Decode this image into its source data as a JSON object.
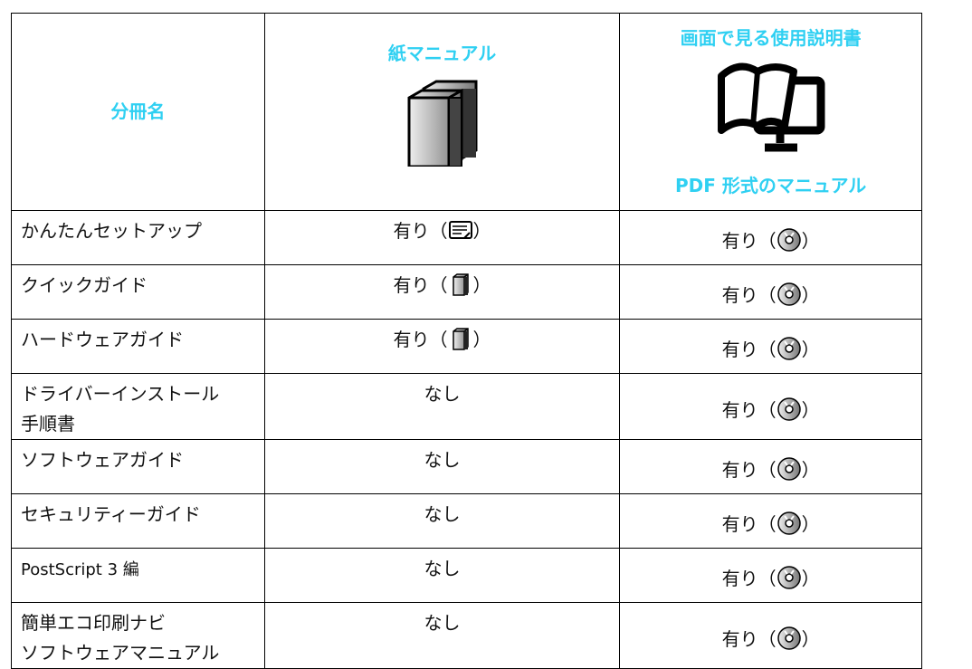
{
  "header": {
    "name": "分冊名",
    "paper": "紙マニュアル",
    "screen": "画面で見る使用説明書",
    "screen_format": "PDF 形式のマニュアル"
  },
  "rows": [
    {
      "name": [
        "かんたんセットアップ"
      ],
      "paper": [
        "有り（",
        "）"
      ],
      "screen": [
        "有り（",
        "）"
      ]
    },
    {
      "name": [
        "クイックガイド"
      ],
      "paper": [
        "有り（",
        "）"
      ],
      "screen": [
        "有り（",
        "）"
      ]
    },
    {
      "name": [
        "ハードウェアガイド"
      ],
      "paper": [
        "有り（",
        "）"
      ],
      "screen": [
        "有り（",
        "）"
      ]
    },
    {
      "name": [
        "ドライバーインストール",
        "手順書"
      ],
      "paper": [
        "なし"
      ],
      "screen": [
        "有り（",
        "）"
      ]
    },
    {
      "name": [
        "ソフトウェアガイド"
      ],
      "paper": [
        "なし"
      ],
      "screen": [
        "有り（",
        "）"
      ]
    },
    {
      "name": [
        "セキュリティーガイド"
      ],
      "paper": [
        "なし"
      ],
      "screen": [
        "有り（",
        "）"
      ]
    },
    {
      "name": [
        "PostScript 3 編"
      ],
      "paper": [
        "なし"
      ],
      "screen": [
        "有り（",
        "）"
      ]
    },
    {
      "name": [
        "簡単エコ印刷ナビ",
        "ソフトウェアマニュアル"
      ],
      "paper": [
        "なし"
      ],
      "screen": [
        "有り（",
        "）"
      ]
    }
  ]
}
